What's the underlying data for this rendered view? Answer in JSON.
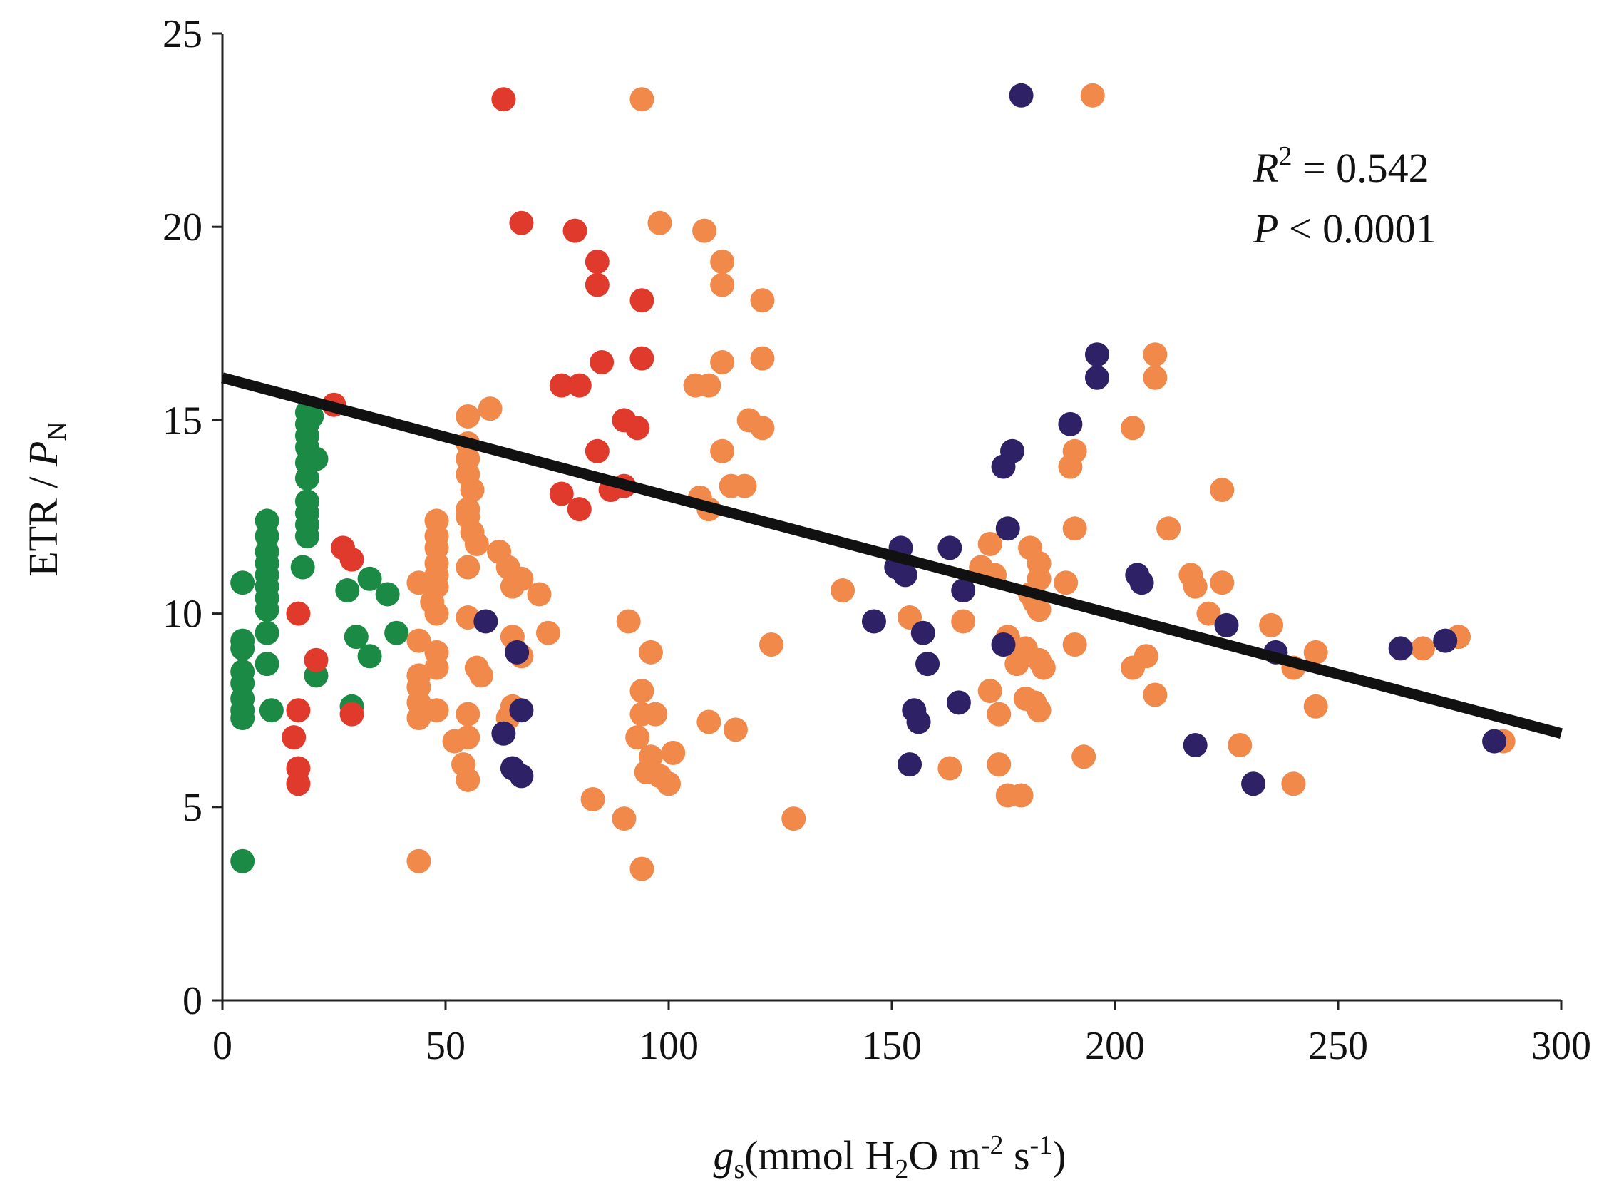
{
  "chart_data": {
    "type": "scatter",
    "title": "",
    "xlabel": {
      "var": "g",
      "sub": "s",
      "unit_pre": "(mmol H",
      "unit_sub": "2",
      "unit_mid": "O m",
      "sup1": "-2",
      "unit_s": " s",
      "sup2": "-1",
      "unit_post": ")"
    },
    "ylabel": {
      "pre": "ETR / ",
      "var": "P",
      "sub": "N"
    },
    "xlim": [
      0,
      300
    ],
    "ylim": [
      0,
      25
    ],
    "xticks": [
      "0",
      "50",
      "100",
      "150",
      "200",
      "250",
      "300"
    ],
    "yticks": [
      "0",
      "5",
      "10",
      "15",
      "20",
      "25"
    ],
    "annotations": {
      "r2_var": "R",
      "r2_sup": "2",
      "r2_value": " = 0.542",
      "p_var": "P",
      "p_value": " < 0.0001"
    },
    "fit_line": {
      "x": [
        0,
        300
      ],
      "y": [
        16.1,
        6.9
      ]
    },
    "series": [
      {
        "name": "green",
        "color": "#1a8a45",
        "points": [
          [
            4.5,
            10.8
          ],
          [
            4.5,
            9.1
          ],
          [
            4.5,
            9.3
          ],
          [
            4.5,
            8.5
          ],
          [
            4.5,
            8.2
          ],
          [
            4.5,
            7.8
          ],
          [
            4.5,
            7.5
          ],
          [
            4.5,
            7.3
          ],
          [
            4.5,
            3.6
          ],
          [
            10,
            12.4
          ],
          [
            10,
            12.0
          ],
          [
            10,
            11.6
          ],
          [
            10,
            11.3
          ],
          [
            10,
            11.0
          ],
          [
            10,
            10.7
          ],
          [
            10,
            10.4
          ],
          [
            10,
            10.1
          ],
          [
            10,
            9.5
          ],
          [
            10,
            8.7
          ],
          [
            11,
            7.5
          ],
          [
            19,
            15.2
          ],
          [
            19,
            14.9
          ],
          [
            19,
            14.6
          ],
          [
            19,
            14.3
          ],
          [
            19,
            13.9
          ],
          [
            19,
            13.5
          ],
          [
            19,
            12.9
          ],
          [
            19,
            12.6
          ],
          [
            19,
            12.3
          ],
          [
            19,
            12.0
          ],
          [
            18,
            11.2
          ],
          [
            20,
            15.1
          ],
          [
            21,
            14.0
          ],
          [
            21,
            8.4
          ],
          [
            28,
            10.6
          ],
          [
            29,
            7.6
          ],
          [
            30,
            9.4
          ],
          [
            33,
            10.9
          ],
          [
            33,
            8.9
          ],
          [
            37,
            10.5
          ],
          [
            39,
            9.5
          ]
        ]
      },
      {
        "name": "red",
        "color": "#e03a2c",
        "points": [
          [
            63,
            23.3
          ],
          [
            67,
            20.1
          ],
          [
            79,
            19.9
          ],
          [
            84,
            19.1
          ],
          [
            84,
            18.5
          ],
          [
            94,
            18.1
          ],
          [
            85,
            16.5
          ],
          [
            94,
            16.6
          ],
          [
            76,
            15.9
          ],
          [
            80,
            15.9
          ],
          [
            90,
            15.0
          ],
          [
            93,
            14.8
          ],
          [
            84,
            14.2
          ],
          [
            90,
            13.3
          ],
          [
            87,
            13.2
          ],
          [
            76,
            13.1
          ],
          [
            80,
            12.7
          ],
          [
            25,
            15.4
          ],
          [
            27,
            11.7
          ],
          [
            29,
            11.4
          ],
          [
            17,
            10.0
          ],
          [
            21,
            8.8
          ],
          [
            29,
            7.4
          ],
          [
            17,
            7.5
          ],
          [
            16,
            6.8
          ],
          [
            17,
            6.0
          ],
          [
            17,
            5.6
          ]
        ]
      },
      {
        "name": "orange",
        "color": "#f0894a",
        "points": [
          [
            94,
            23.3
          ],
          [
            98,
            20.1
          ],
          [
            108,
            19.9
          ],
          [
            112,
            19.1
          ],
          [
            112,
            18.5
          ],
          [
            121,
            18.1
          ],
          [
            112,
            16.5
          ],
          [
            121,
            16.6
          ],
          [
            106,
            15.9
          ],
          [
            109,
            15.9
          ],
          [
            118,
            15.0
          ],
          [
            121,
            14.8
          ],
          [
            112,
            14.2
          ],
          [
            114,
            13.3
          ],
          [
            117,
            13.3
          ],
          [
            107,
            13.0
          ],
          [
            109,
            12.7
          ],
          [
            55,
            15.1
          ],
          [
            60,
            15.3
          ],
          [
            55,
            14.4
          ],
          [
            55,
            14.0
          ],
          [
            55,
            13.6
          ],
          [
            56,
            13.2
          ],
          [
            55,
            12.7
          ],
          [
            55,
            12.5
          ],
          [
            56,
            12.1
          ],
          [
            57,
            11.8
          ],
          [
            48,
            12.4
          ],
          [
            48,
            12.0
          ],
          [
            48,
            11.7
          ],
          [
            48,
            11.3
          ],
          [
            48,
            11.0
          ],
          [
            48,
            10.7
          ],
          [
            44,
            10.8
          ],
          [
            47,
            10.3
          ],
          [
            48,
            10.0
          ],
          [
            55,
            11.2
          ],
          [
            55,
            9.9
          ],
          [
            62,
            11.6
          ],
          [
            64,
            11.2
          ],
          [
            65,
            10.7
          ],
          [
            67,
            10.9
          ],
          [
            71,
            10.5
          ],
          [
            65,
            9.4
          ],
          [
            73,
            9.5
          ],
          [
            67,
            8.9
          ],
          [
            57,
            8.6
          ],
          [
            58,
            8.4
          ],
          [
            44,
            9.3
          ],
          [
            48,
            9.0
          ],
          [
            44,
            8.4
          ],
          [
            44,
            8.1
          ],
          [
            48,
            8.6
          ],
          [
            44,
            7.7
          ],
          [
            48,
            7.5
          ],
          [
            44,
            7.3
          ],
          [
            55,
            7.4
          ],
          [
            55,
            6.8
          ],
          [
            52,
            6.7
          ],
          [
            54,
            6.1
          ],
          [
            55,
            5.7
          ],
          [
            65,
            7.6
          ],
          [
            64,
            7.3
          ],
          [
            44,
            3.6
          ],
          [
            91,
            9.8
          ],
          [
            96,
            9.0
          ],
          [
            94,
            8.0
          ],
          [
            94,
            7.4
          ],
          [
            97,
            7.4
          ],
          [
            93,
            6.8
          ],
          [
            96,
            6.3
          ],
          [
            101,
            6.4
          ],
          [
            95,
            5.9
          ],
          [
            98,
            5.8
          ],
          [
            100,
            5.6
          ],
          [
            109,
            7.2
          ],
          [
            115,
            7.0
          ],
          [
            83,
            5.2
          ],
          [
            90,
            4.7
          ],
          [
            94,
            3.4
          ],
          [
            123,
            9.2
          ],
          [
            128,
            4.7
          ],
          [
            139,
            10.6
          ],
          [
            154,
            9.9
          ],
          [
            166,
            9.8
          ],
          [
            163,
            6.0
          ],
          [
            172,
            11.8
          ],
          [
            173,
            11.0
          ],
          [
            170,
            11.2
          ],
          [
            174,
            7.4
          ],
          [
            176,
            9.4
          ],
          [
            172,
            8.0
          ],
          [
            174,
            6.1
          ],
          [
            176,
            5.3
          ],
          [
            179,
            5.3
          ],
          [
            178,
            8.7
          ],
          [
            181,
            10.5
          ],
          [
            181,
            11.7
          ],
          [
            183,
            11.3
          ],
          [
            183,
            10.9
          ],
          [
            182,
            10.3
          ],
          [
            183,
            10.1
          ],
          [
            180,
            9.1
          ],
          [
            183,
            8.8
          ],
          [
            184,
            8.6
          ],
          [
            180,
            7.8
          ],
          [
            182,
            7.7
          ],
          [
            183,
            7.5
          ],
          [
            195,
            23.4
          ],
          [
            191,
            14.2
          ],
          [
            190,
            13.8
          ],
          [
            191,
            12.2
          ],
          [
            189,
            10.8
          ],
          [
            191,
            9.2
          ],
          [
            193,
            6.3
          ],
          [
            209,
            16.7
          ],
          [
            209,
            16.1
          ],
          [
            204,
            14.8
          ],
          [
            207,
            8.9
          ],
          [
            204,
            8.6
          ],
          [
            209,
            7.9
          ],
          [
            212,
            12.2
          ],
          [
            217,
            11.0
          ],
          [
            218,
            10.7
          ],
          [
            221,
            10.0
          ],
          [
            224,
            13.2
          ],
          [
            224,
            10.8
          ],
          [
            228,
            6.6
          ],
          [
            235,
            9.7
          ],
          [
            240,
            8.6
          ],
          [
            240,
            5.6
          ],
          [
            245,
            9.0
          ],
          [
            245,
            7.6
          ],
          [
            269,
            9.1
          ],
          [
            277,
            9.4
          ],
          [
            287,
            6.7
          ]
        ]
      },
      {
        "name": "purple",
        "color": "#2e2166",
        "points": [
          [
            179,
            23.4
          ],
          [
            196,
            16.7
          ],
          [
            196,
            16.1
          ],
          [
            190,
            14.9
          ],
          [
            177,
            14.2
          ],
          [
            175,
            13.8
          ],
          [
            176,
            12.2
          ],
          [
            152,
            11.7
          ],
          [
            153,
            11.0
          ],
          [
            151,
            11.2
          ],
          [
            163,
            11.7
          ],
          [
            166,
            10.6
          ],
          [
            146,
            9.8
          ],
          [
            157,
            9.5
          ],
          [
            158,
            8.7
          ],
          [
            155,
            7.5
          ],
          [
            156,
            7.2
          ],
          [
            165,
            7.7
          ],
          [
            154,
            6.1
          ],
          [
            175,
            9.2
          ],
          [
            205,
            11.0
          ],
          [
            206,
            10.8
          ],
          [
            225,
            9.7
          ],
          [
            218,
            6.6
          ],
          [
            231,
            5.6
          ],
          [
            236,
            9.0
          ],
          [
            264,
            9.1
          ],
          [
            274,
            9.3
          ],
          [
            285,
            6.7
          ],
          [
            59,
            9.8
          ],
          [
            66,
            9.0
          ],
          [
            63,
            6.9
          ],
          [
            67,
            7.5
          ],
          [
            65,
            6.0
          ],
          [
            67,
            5.8
          ]
        ]
      }
    ]
  }
}
